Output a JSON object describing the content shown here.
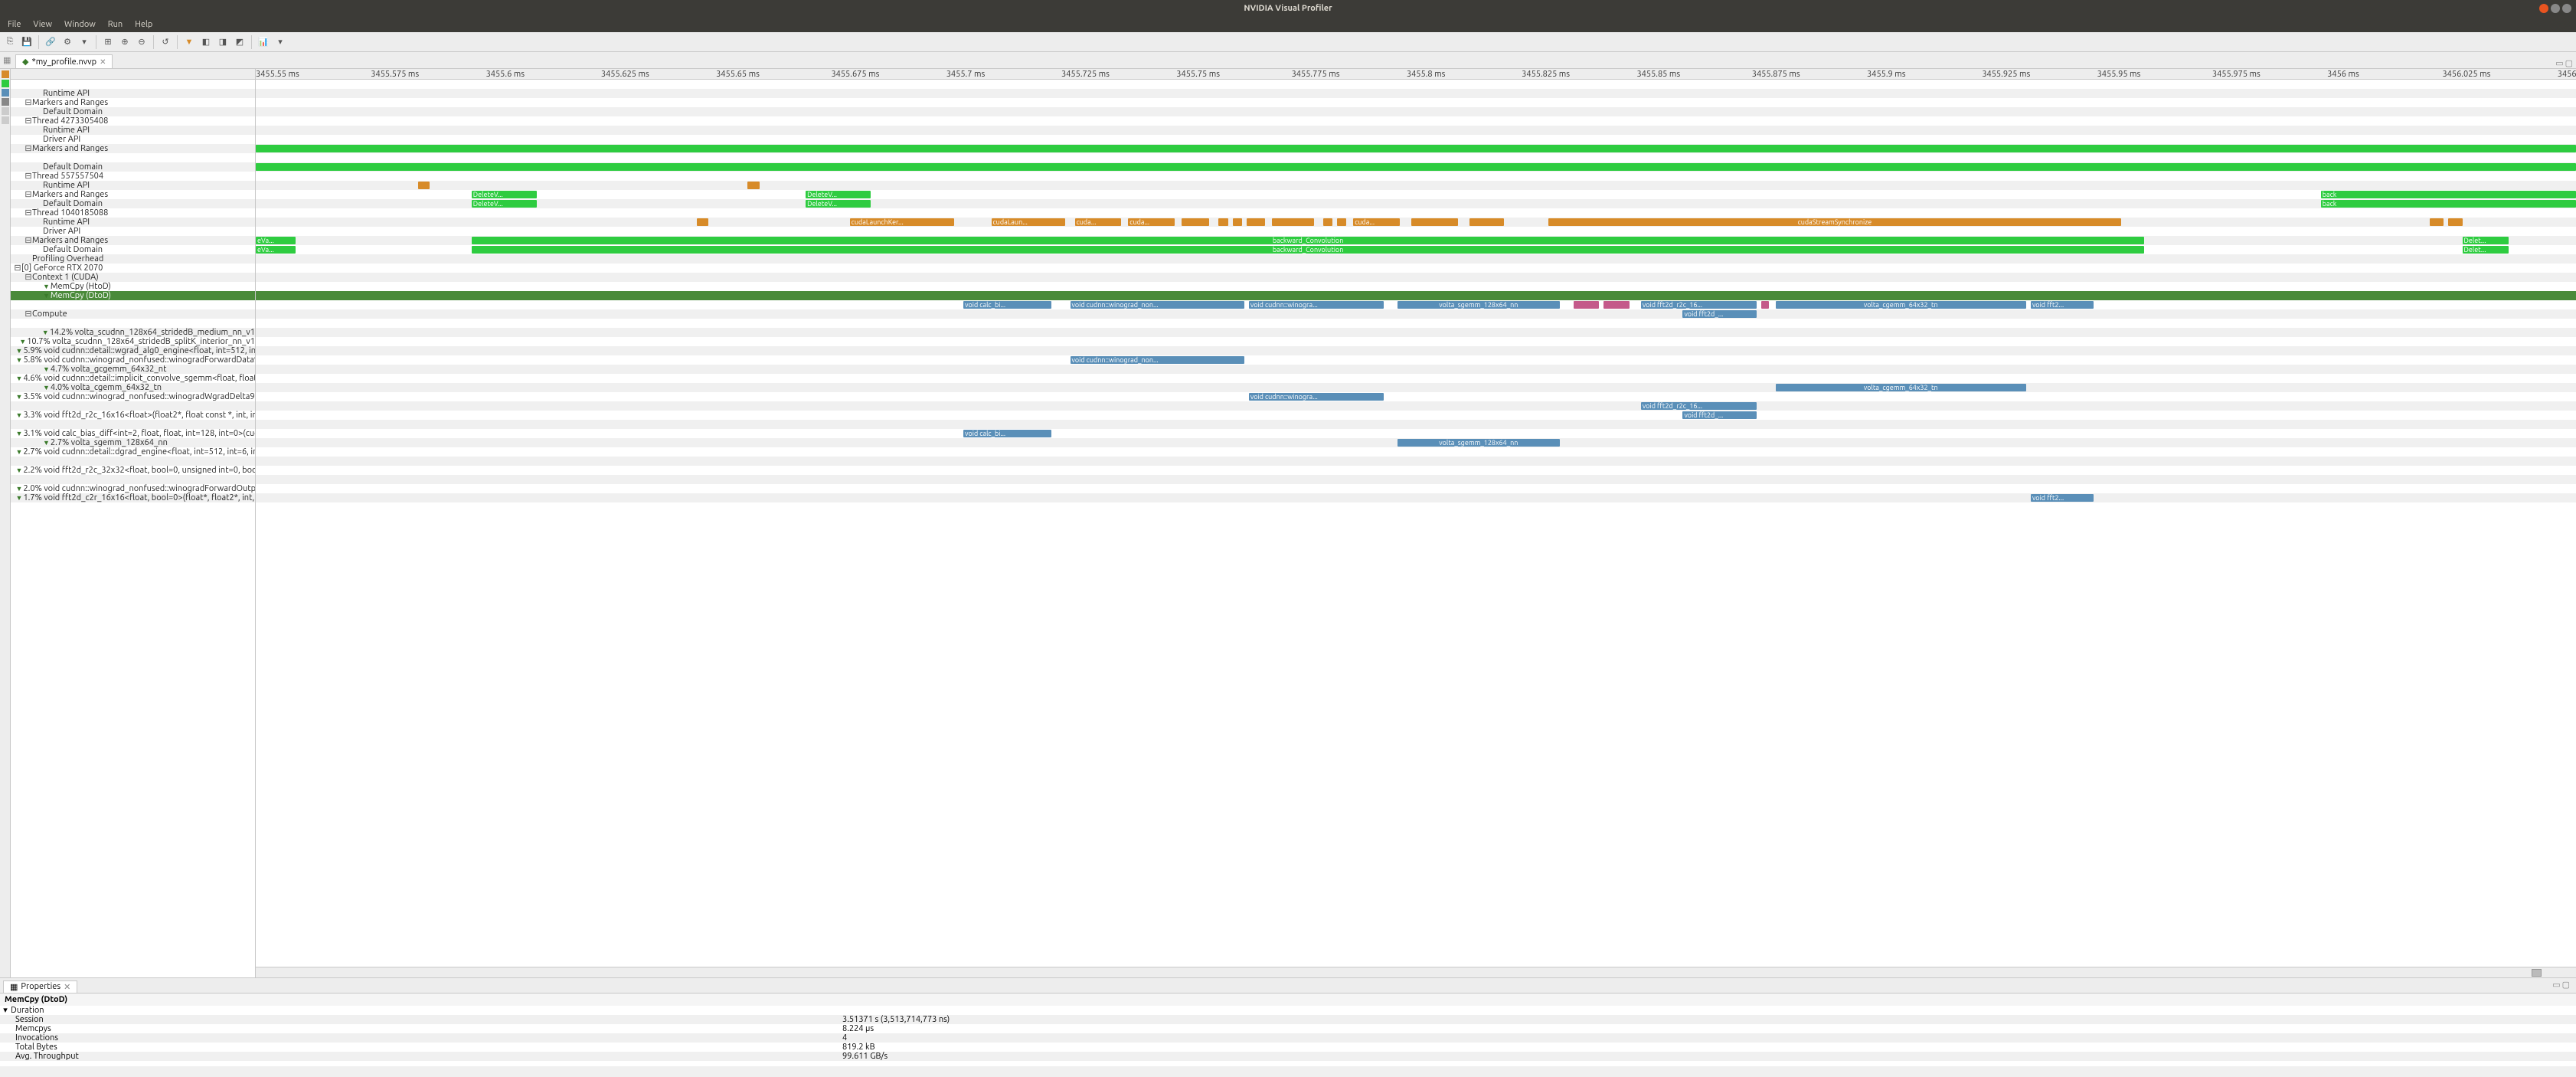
{
  "window": {
    "title": "NVIDIA Visual Profiler",
    "controls": {
      "close": "#e95420",
      "min": "#888",
      "max": "#888"
    }
  },
  "menu": [
    "File",
    "View",
    "Window",
    "Run",
    "Help"
  ],
  "tab": {
    "label": "*my_profile.nvvp",
    "dirty": true
  },
  "colors": {
    "green": "#2ecc40",
    "orange": "#d78b29",
    "blue": "#5a8fb8",
    "pink": "#c45a8a",
    "row_even": "#ffffff",
    "row_odd": "#f0f0f0",
    "selected": "#4a8a3a"
  },
  "ruler": {
    "start_ms": 3455.55,
    "end_ms": 3456.05,
    "step_ms": 0.025,
    "labels": [
      "3455.55 ms",
      "3455.575 ms",
      "3455.6 ms",
      "3455.625 ms",
      "3455.65 ms",
      "3455.675 ms",
      "3455.7 ms",
      "3455.725 ms",
      "3455.75 ms",
      "3455.775 ms",
      "3455.8 ms",
      "3455.825 ms",
      "3455.85 ms",
      "3455.875 ms",
      "3455.9 ms",
      "3455.925 ms",
      "3455.95 ms",
      "3455.975 ms",
      "3456 ms",
      "3456.025 ms",
      "3456"
    ]
  },
  "tree": [
    {
      "indent": 1,
      "toggle": "",
      "label": "",
      "bars": []
    },
    {
      "indent": 2,
      "toggle": "",
      "label": "Runtime API",
      "bars": []
    },
    {
      "indent": 1,
      "toggle": "-",
      "label": "Markers and Ranges",
      "bars": []
    },
    {
      "indent": 2,
      "toggle": "",
      "label": "Default Domain",
      "bars": []
    },
    {
      "indent": 1,
      "toggle": "-",
      "label": "Thread 4273305408",
      "bars": []
    },
    {
      "indent": 2,
      "toggle": "",
      "label": "Runtime API",
      "bars": []
    },
    {
      "indent": 2,
      "toggle": "",
      "label": "Driver API",
      "bars": []
    },
    {
      "indent": 1,
      "toggle": "-",
      "label": "Markers and Ranges",
      "bars": [
        {
          "x": 0,
          "w": 1.4,
          "c": "green"
        },
        {
          "x": 0,
          "w": 100,
          "c": "green",
          "full": true
        }
      ]
    },
    {
      "indent": 1,
      "toggle": "",
      "label": "",
      "bars": []
    },
    {
      "indent": 2,
      "toggle": "",
      "label": "Default Domain",
      "bars": [
        {
          "x": 0,
          "w": 1.4,
          "c": "green"
        },
        {
          "x": 0,
          "w": 100,
          "c": "green",
          "full": true
        }
      ]
    },
    {
      "indent": 1,
      "toggle": "-",
      "label": "Thread 557557504",
      "bars": []
    },
    {
      "indent": 2,
      "toggle": "",
      "label": "Runtime API",
      "bars": [
        {
          "x": 7.0,
          "w": 0.5,
          "c": "orange"
        },
        {
          "x": 21.2,
          "w": 0.5,
          "c": "orange"
        }
      ]
    },
    {
      "indent": 1,
      "toggle": "-",
      "label": "Markers and Ranges",
      "bars": [
        {
          "x": 9.3,
          "w": 2.8,
          "c": "green",
          "t": "DeleteV..."
        },
        {
          "x": 23.7,
          "w": 2.8,
          "c": "green",
          "t": "DeleteV..."
        },
        {
          "x": 89.0,
          "w": 11,
          "c": "green",
          "t": "back"
        }
      ]
    },
    {
      "indent": 2,
      "toggle": "",
      "label": "Default Domain",
      "bars": [
        {
          "x": 9.3,
          "w": 2.8,
          "c": "green",
          "t": "DeleteV..."
        },
        {
          "x": 23.7,
          "w": 2.8,
          "c": "green",
          "t": "DeleteV..."
        },
        {
          "x": 89.0,
          "w": 11,
          "c": "green",
          "t": "back"
        }
      ]
    },
    {
      "indent": 1,
      "toggle": "-",
      "label": "Thread 1040185088",
      "bars": []
    },
    {
      "indent": 2,
      "toggle": "",
      "label": "Runtime API",
      "bars": [
        {
          "x": 19.0,
          "w": 0.5,
          "c": "orange"
        },
        {
          "x": 25.6,
          "w": 4.5,
          "c": "orange",
          "t": "cudaLaunchKer..."
        },
        {
          "x": 31.7,
          "w": 3.2,
          "c": "orange",
          "t": "cudaLaun..."
        },
        {
          "x": 35.3,
          "w": 2.0,
          "c": "orange",
          "t": "cuda..."
        },
        {
          "x": 37.6,
          "w": 2.0,
          "c": "orange",
          "t": "cuda..."
        },
        {
          "x": 39.9,
          "w": 1.2,
          "c": "orange"
        },
        {
          "x": 41.5,
          "w": 0.4,
          "c": "orange"
        },
        {
          "x": 42.1,
          "w": 0.4,
          "c": "orange"
        },
        {
          "x": 42.7,
          "w": 0.8,
          "c": "orange"
        },
        {
          "x": 43.8,
          "w": 1.8,
          "c": "orange"
        },
        {
          "x": 46.0,
          "w": 0.4,
          "c": "orange"
        },
        {
          "x": 46.6,
          "w": 0.4,
          "c": "orange"
        },
        {
          "x": 47.3,
          "w": 2.0,
          "c": "orange",
          "t": "cuda..."
        },
        {
          "x": 49.8,
          "w": 2.0,
          "c": "orange"
        },
        {
          "x": 52.3,
          "w": 1.5,
          "c": "orange"
        },
        {
          "x": 55.7,
          "w": 24.7,
          "c": "orange",
          "t": "cudaStreamSynchronize"
        },
        {
          "x": 93.7,
          "w": 0.6,
          "c": "orange"
        },
        {
          "x": 94.5,
          "w": 0.6,
          "c": "orange"
        }
      ]
    },
    {
      "indent": 2,
      "toggle": "",
      "label": "Driver API",
      "bars": []
    },
    {
      "indent": 1,
      "toggle": "-",
      "label": "Markers and Ranges",
      "bars": [
        {
          "x": 0,
          "w": 1.7,
          "c": "green",
          "t": "eVa..."
        },
        {
          "x": 9.3,
          "w": 72.1,
          "c": "green",
          "t": "backward_Convolution"
        },
        {
          "x": 95.1,
          "w": 2.0,
          "c": "green",
          "t": "Delet..."
        }
      ]
    },
    {
      "indent": 2,
      "toggle": "",
      "label": "Default Domain",
      "bars": [
        {
          "x": 0,
          "w": 1.7,
          "c": "green",
          "t": "eVa..."
        },
        {
          "x": 9.3,
          "w": 72.1,
          "c": "green",
          "t": "backward_Convolution"
        },
        {
          "x": 95.1,
          "w": 2.0,
          "c": "green",
          "t": "Delet..."
        }
      ]
    },
    {
      "indent": 1,
      "toggle": "",
      "label": "Profiling Overhead",
      "bars": []
    },
    {
      "indent": 0,
      "toggle": "-",
      "label": "[0] GeForce RTX 2070",
      "bars": []
    },
    {
      "indent": 1,
      "toggle": "-",
      "label": "Context 1 (CUDA)",
      "bars": []
    },
    {
      "indent": 2,
      "toggle": "",
      "filter": true,
      "label": "MemCpy (HtoD)",
      "bars": []
    },
    {
      "indent": 2,
      "toggle": "",
      "filter": true,
      "label": "MemCpy (DtoD)",
      "selected": true,
      "bars": []
    },
    {
      "indent": 2,
      "toggle": "",
      "label": "",
      "bars": [
        {
          "x": 30.5,
          "w": 3.8,
          "c": "blue",
          "t": "void calc_bi..."
        },
        {
          "x": 35.1,
          "w": 7.5,
          "c": "blue",
          "t": "void cudnn::winograd_non..."
        },
        {
          "x": 42.8,
          "w": 5.8,
          "c": "blue",
          "t": "void cudnn::winogra..."
        },
        {
          "x": 49.2,
          "w": 7.0,
          "c": "blue",
          "t": "volta_sgemm_128x64_nn"
        },
        {
          "x": 56.8,
          "w": 1.1,
          "c": "pink"
        },
        {
          "x": 58.1,
          "w": 1.1,
          "c": "pink"
        },
        {
          "x": 59.7,
          "w": 5.0,
          "c": "blue",
          "t": "void fft2d_r2c_16..."
        },
        {
          "x": 64.9,
          "w": 0.3,
          "c": "pink"
        },
        {
          "x": 65.5,
          "w": 10.8,
          "c": "blue",
          "t": "volta_cgemm_64x32_tn"
        },
        {
          "x": 76.5,
          "w": 2.7,
          "c": "blue",
          "t": "void fft2..."
        }
      ]
    },
    {
      "indent": 1,
      "toggle": "-",
      "label": "Compute",
      "bars": [
        {
          "x": 61.5,
          "w": 3.2,
          "c": "blue",
          "t": "void fft2d_..."
        }
      ]
    },
    {
      "indent": 2,
      "toggle": "",
      "label": "",
      "bars": []
    },
    {
      "indent": 2,
      "toggle": "",
      "filter": true,
      "label": "14.2% volta_scudnn_128x64_stridedB_medium_nn_v1",
      "bars": []
    },
    {
      "indent": 2,
      "toggle": "",
      "filter": true,
      "label": "10.7% volta_scudnn_128x64_stridedB_splitK_interior_nn_v1",
      "bars": []
    },
    {
      "indent": 2,
      "toggle": "",
      "filter": true,
      "label": "5.9% void cudnn::detail::wgrad_alg0_engine<float, int=512, int=6, int=5, int=3, int=3, int=3, bool...",
      "bars": []
    },
    {
      "indent": 2,
      "toggle": "",
      "filter": true,
      "label": "5.8% void cudnn::winograd_nonfused::winogradForwardData9x9_5x5<float, float>(cudnn::wino...",
      "bars": [
        {
          "x": 35.1,
          "w": 7.5,
          "c": "blue",
          "t": "void cudnn::winograd_non..."
        }
      ]
    },
    {
      "indent": 2,
      "toggle": "",
      "filter": true,
      "label": "4.7% volta_gcgemm_64x32_nt",
      "bars": []
    },
    {
      "indent": 2,
      "toggle": "",
      "filter": true,
      "label": "4.6% void cudnn::detail::implicit_convolve_sgemm<float, float, int=1024, int=5, int=5, int=3, int=3...",
      "bars": []
    },
    {
      "indent": 2,
      "toggle": "",
      "filter": true,
      "label": "4.0% volta_cgemm_64x32_tn",
      "bars": [
        {
          "x": 65.5,
          "w": 10.8,
          "c": "blue",
          "t": "volta_cgemm_64x32_tn"
        }
      ]
    },
    {
      "indent": 2,
      "toggle": "",
      "filter": true,
      "label": "3.5% void cudnn::winograd_nonfused::winogradWgradDelta9x9_5x5<float, float>(cudnn::winogr...",
      "bars": [
        {
          "x": 42.8,
          "w": 5.8,
          "c": "blue",
          "t": "void cudnn::winogra..."
        }
      ]
    },
    {
      "indent": 2,
      "toggle": "",
      "label": "",
      "bars": [
        {
          "x": 59.7,
          "w": 5.0,
          "c": "blue",
          "t": "void fft2d_r2c_16..."
        }
      ]
    },
    {
      "indent": 2,
      "toggle": "",
      "filter": true,
      "label": "3.3% void fft2d_r2c_16x16<float>(float2*, float const *, int, int, int, int, int, int, int, int)",
      "bars": [
        {
          "x": 61.5,
          "w": 3.2,
          "c": "blue",
          "t": "void fft2d_..."
        }
      ]
    },
    {
      "indent": 2,
      "toggle": "",
      "label": "",
      "bars": []
    },
    {
      "indent": 2,
      "toggle": "",
      "filter": true,
      "label": "3.1% void calc_bias_diff<int=2, float, float, int=128, int=0>(cudnnTensorStruct, float const *, cud...",
      "bars": [
        {
          "x": 30.5,
          "w": 3.8,
          "c": "blue",
          "t": "void calc_bi..."
        }
      ]
    },
    {
      "indent": 2,
      "toggle": "",
      "filter": true,
      "label": "2.7% volta_sgemm_128x64_nn",
      "bars": [
        {
          "x": 49.2,
          "w": 7.0,
          "c": "blue",
          "t": "volta_sgemm_128x64_nn"
        }
      ]
    },
    {
      "indent": 2,
      "toggle": "",
      "filter": true,
      "label": "2.7% void cudnn::detail::dgrad_engine<float, int=512, int=6, int=5, int=3, int=3, int=3, bool=1>(in...",
      "bars": []
    },
    {
      "indent": 2,
      "toggle": "",
      "label": "",
      "bars": []
    },
    {
      "indent": 2,
      "toggle": "",
      "filter": true,
      "label": "2.2% void fft2d_r2c_32x32<float, bool=0, unsigned int=0, bool=0>(float2*, float const *, int, int, i...",
      "bars": []
    },
    {
      "indent": 2,
      "toggle": "",
      "label": "",
      "bars": []
    },
    {
      "indent": 2,
      "toggle": "",
      "filter": true,
      "label": "2.0% void cudnn::winograd_nonfused::winogradForwardOutput9x9_5x5<float, float>(cudnn::win...",
      "bars": []
    },
    {
      "indent": 2,
      "toggle": "",
      "filter": true,
      "label": "1.7% void fft2d_c2r_16x16<float, bool=0>(float*, float2*, int, int, int, int, int, int, int, int, int, fl...",
      "bars": [
        {
          "x": 76.5,
          "w": 2.7,
          "c": "blue",
          "t": "void fft2..."
        }
      ]
    }
  ],
  "hscroll": {
    "thumb_x": 98.1,
    "thumb_w": 0.4
  },
  "properties": {
    "tab": "Properties",
    "title": "MemCpy (DtoD)",
    "section": "Duration",
    "rows": [
      {
        "k": "Session",
        "v": "3.51371 s (3,513,714,773 ns)"
      },
      {
        "k": "Memcpys",
        "v": "8.224 µs"
      },
      {
        "k": "Invocations",
        "v": "4"
      },
      {
        "k": "Total Bytes",
        "v": "819.2 kB"
      },
      {
        "k": "Avg. Throughput",
        "v": "99.611 GB/s"
      }
    ]
  }
}
